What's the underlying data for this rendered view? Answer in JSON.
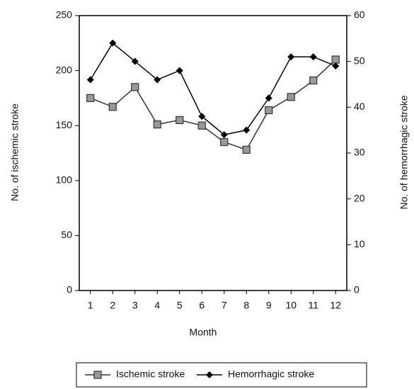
{
  "chart_data": {
    "type": "line",
    "x_label": "Month",
    "y_label": "No. of ischemic stroke",
    "y2_label": "No. of hemorrhagic stroke",
    "categories": [
      "1",
      "2",
      "3",
      "4",
      "5",
      "6",
      "7",
      "8",
      "9",
      "10",
      "11",
      "12"
    ],
    "series": [
      {
        "name": "Ischemic stroke",
        "color": "#333333",
        "marker": "square",
        "values": [
          175,
          167,
          185,
          151,
          155,
          150,
          135,
          128,
          164,
          176,
          191,
          210
        ]
      },
      {
        "name": "Hemorrhagic stroke",
        "color": "#000000",
        "marker": "diamond",
        "axis": "y2",
        "values": [
          46,
          54,
          50,
          46,
          48,
          38,
          34,
          35,
          42,
          51,
          51,
          49
        ]
      }
    ],
    "ylim": [
      0,
      250
    ],
    "yticks": [
      0,
      50,
      100,
      150,
      200,
      250
    ],
    "y2lim": [
      0,
      60
    ],
    "y2ticks": [
      0,
      10,
      20,
      30,
      40,
      50,
      60
    ],
    "legend": "bottom"
  }
}
